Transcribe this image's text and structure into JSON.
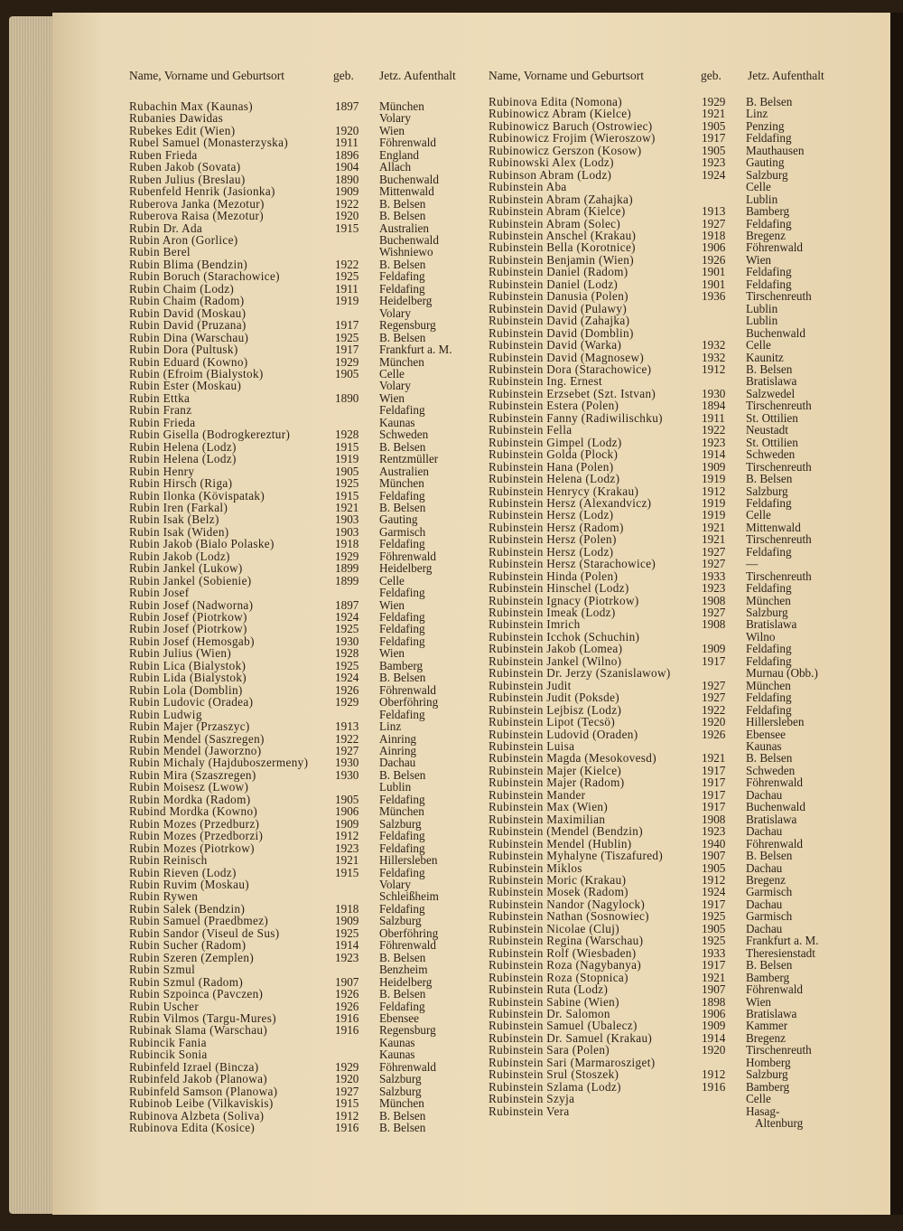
{
  "headers": {
    "name": "Name, Vorname und Geburtsort",
    "born": "geb.",
    "residence": "Jetz. Aufenthalt"
  },
  "left": [
    [
      "Rubachin Max (Kaunas)",
      "1897",
      "München"
    ],
    [
      "Rubanies Dawidas",
      "",
      "Volary"
    ],
    [
      "Rubekes Edit (Wien)",
      "1920",
      "Wien"
    ],
    [
      "Rubel Samuel (Monasterzyska)",
      "1911",
      "Föhrenwald"
    ],
    [
      "Ruben Frieda",
      "1896",
      "England"
    ],
    [
      "Ruben Jakob (Sovata)",
      "1904",
      "Allach"
    ],
    [
      "Ruben Julius (Breslau)",
      "1890",
      "Buchenwald"
    ],
    [
      "Rubenfeld Henrik (Jasionka)",
      "1909",
      "Mittenwald"
    ],
    [
      "Ruberova Janka (Mezotur)",
      "1922",
      "B. Belsen"
    ],
    [
      "Ruberova Raisa (Mezotur)",
      "1920",
      "B. Belsen"
    ],
    [
      "Rubin Dr. Ada",
      "1915",
      "Australien"
    ],
    [
      "Rubin Aron (Gorlice)",
      "",
      "Buchenwald"
    ],
    [
      "Rubin Berel",
      "",
      "Wishniewo"
    ],
    [
      "Rubin Blima (Bendzin)",
      "1922",
      "B. Belsen"
    ],
    [
      "Rubin Boruch (Starachowice)",
      "1925",
      "Feldafing"
    ],
    [
      "Rubin Chaim (Lodz)",
      "1911",
      "Feldafing"
    ],
    [
      "Rubin Chaim (Radom)",
      "1919",
      "Heidelberg"
    ],
    [
      "Rubin David (Moskau)",
      "",
      "Volary"
    ],
    [
      "Rubin David (Pruzana)",
      "1917",
      "Regensburg"
    ],
    [
      "Rubin Dina (Warschau)",
      "1925",
      "B. Belsen"
    ],
    [
      "Rubin Dora (Pultusk)",
      "1917",
      "Frankfurt a. M."
    ],
    [
      "Rubin Eduard (Kowno)",
      "1929",
      "München"
    ],
    [
      "Rubin (Efroim (Bialystok)",
      "1905",
      "Celle"
    ],
    [
      "Rubin Ester (Moskau)",
      "",
      "Volary"
    ],
    [
      "Rubin Ettka",
      "1890",
      "Wien"
    ],
    [
      "Rubin Franz",
      "",
      "Feldafing"
    ],
    [
      "Rubin Frieda",
      "",
      "Kaunas"
    ],
    [
      "Rubin Gisella (Bodrogkereztur)",
      "1928",
      "Schweden"
    ],
    [
      "Rubin Helena (Lodz)",
      "1915",
      "B. Belsen"
    ],
    [
      "Rubin Helena (Lodz)",
      "1919",
      "Rentzmüller"
    ],
    [
      "Rubin Henry",
      "1905",
      "Australien"
    ],
    [
      "Rubin Hirsch (Riga)",
      "1925",
      "München"
    ],
    [
      "Rubin Ilonka (Kövispatak)",
      "1915",
      "Feldafing"
    ],
    [
      "Rubin Iren (Farkal)",
      "1921",
      "B. Belsen"
    ],
    [
      "Rubin Isak (Belz)",
      "1903",
      "Gauting"
    ],
    [
      "Rubin Isak (Widen)",
      "1903",
      "Garmisch"
    ],
    [
      "Rubin Jakob (Bialo Polaske)",
      "1918",
      "Feldafing"
    ],
    [
      "Rubin Jakob (Lodz)",
      "1929",
      "Föhrenwald"
    ],
    [
      "Rubin Jankel (Lukow)",
      "1899",
      "Heidelberg"
    ],
    [
      "Rubin Jankel (Sobienie)",
      "1899",
      "Celle"
    ],
    [
      "Rubin Josef",
      "",
      "Feldafing"
    ],
    [
      "Rubin Josef (Nadworna)",
      "1897",
      "Wien"
    ],
    [
      "Rubin Josef (Piotrkow)",
      "1924",
      "Feldafing"
    ],
    [
      "Rubin Josef (Piotrkow)",
      "1925",
      "Feldafing"
    ],
    [
      "Rubin Josef (Hemosgab)",
      "1930",
      "Feldafing"
    ],
    [
      "Rubin Julius (Wien)",
      "1928",
      "Wien"
    ],
    [
      "Rubin Lica (Bialystok)",
      "1925",
      "Bamberg"
    ],
    [
      "Rubin Lida (Bialystok)",
      "1924",
      "B. Belsen"
    ],
    [
      "Rubin Lola (Domblin)",
      "1926",
      "Föhrenwald"
    ],
    [
      "Rubin Ludovic (Oradea)",
      "1929",
      "Oberföhring"
    ],
    [
      "Rubin Ludwig",
      "",
      "Feldafing"
    ],
    [
      "Rubin Majer (Przaszyc)",
      "1913",
      "Linz"
    ],
    [
      "Rubin Mendel (Saszregen)",
      "1922",
      "Ainring"
    ],
    [
      "Rubin Mendel (Jaworzno)",
      "1927",
      "Ainring"
    ],
    [
      "Rubin Michaly (Hajduboszermeny)",
      "1930",
      "Dachau"
    ],
    [
      "Rubin Mira (Szaszregen)",
      "1930",
      "B. Belsen"
    ],
    [
      "Rubin Moisesz (Lwow)",
      "",
      "Lublin"
    ],
    [
      "Rubin Mordka (Radom)",
      "1905",
      "Feldafing"
    ],
    [
      "Rubind Mordka (Kowno)",
      "1906",
      "München"
    ],
    [
      "Rubin Mozes (Przedburz)",
      "1909",
      "Salzburg"
    ],
    [
      "Rubin Mozes (Przedborzi)",
      "1912",
      "Feldafing"
    ],
    [
      "Rubin Mozes (Piotrkow)",
      "1923",
      "Feldafing"
    ],
    [
      "Rubin Reinisch",
      "1921",
      "Hillersleben"
    ],
    [
      "Rubin Rieven (Lodz)",
      "1915",
      "Feldafing"
    ],
    [
      "Rubin Ruvim (Moskau)",
      "",
      "Volary"
    ],
    [
      "Rubin Rywen",
      "",
      "Schleißheim"
    ],
    [
      "Rubin Salek (Bendzin)",
      "1918",
      "Feldafing"
    ],
    [
      "Rubin Samuel (Praedbmez)",
      "1909",
      "Salzburg"
    ],
    [
      "Rubin Sandor (Viseul de Sus)",
      "1925",
      "Oberföhring"
    ],
    [
      "Rubin Sucher (Radom)",
      "1914",
      "Föhrenwald"
    ],
    [
      "Rubin Szeren (Zemplen)",
      "1923",
      "B. Belsen"
    ],
    [
      "Rubin Szmul",
      "",
      "Benzheim"
    ],
    [
      "Rubin Szmul (Radom)",
      "1907",
      "Heidelberg"
    ],
    [
      "Rubin Szpoinca (Pavczen)",
      "1926",
      "B. Belsen"
    ],
    [
      "Rubin Uscher",
      "1926",
      "Feldafing"
    ],
    [
      "Rubin Vilmos (Targu-Mures)",
      "1916",
      "Ebensee"
    ],
    [
      "Rubinak Slama (Warschau)",
      "1916",
      "Regensburg"
    ],
    [
      "Rubincik Fania",
      "",
      "Kaunas"
    ],
    [
      "Rubincik Sonia",
      "",
      "Kaunas"
    ],
    [
      "Rubinfeld Izrael (Bincza)",
      "1929",
      "Föhrenwald"
    ],
    [
      "Rubinfeld Jakob (Planowa)",
      "1920",
      "Salzburg"
    ],
    [
      "Rubinfeld Samson (Planowa)",
      "1927",
      "Salzburg"
    ],
    [
      "Rubinob Leibe (Vilkaviskis)",
      "1915",
      "München"
    ],
    [
      "Rubinova Alzbeta (Soliva)",
      "1912",
      "B. Belsen"
    ],
    [
      "Rubinova Edita (Kosice)",
      "1916",
      "B. Belsen"
    ]
  ],
  "right": [
    [
      "Rubinova Edita (Nomona)",
      "1929",
      "B. Belsen"
    ],
    [
      "Rubinowicz Abram (Kielce)",
      "1921",
      "Linz"
    ],
    [
      "Rubinowicz Baruch (Ostrowiec)",
      "1905",
      "Penzing"
    ],
    [
      "Rubinowicz Frojim (Wieroszow)",
      "1917",
      "Feldafing"
    ],
    [
      "Rubinowicz Gerszon (Kosow)",
      "1905",
      "Mauthausen"
    ],
    [
      "Rubinowski Alex (Lodz)",
      "1923",
      "Gauting"
    ],
    [
      "Rubinson Abram (Lodz)",
      "1924",
      "Salzburg"
    ],
    [
      "Rubinstein Aba",
      "",
      "Celle"
    ],
    [
      "Rubinstein Abram (Zahajka)",
      "",
      "Lublin"
    ],
    [
      "Rubinstein Abram (Kielce)",
      "1913",
      "Bamberg"
    ],
    [
      "Rubinstein Abram (Solec)",
      "1927",
      "Feldafing"
    ],
    [
      "Rubinstein Anschel (Krakau)",
      "1918",
      "Bregenz"
    ],
    [
      "Rubinstein Bella (Korotnice)",
      "1906",
      "Föhrenwald"
    ],
    [
      "Rubinstein Benjamin (Wien)",
      "1926",
      "Wien"
    ],
    [
      "Rubinstein Daniel (Radom)",
      "1901",
      "Feldafing"
    ],
    [
      "Rubinstein Daniel (Lodz)",
      "1901",
      "Feldafing"
    ],
    [
      "Rubinstein Danusia (Polen)",
      "1936",
      "Tirschenreuth"
    ],
    [
      "Rubinstein David (Pulawy)",
      "",
      "Lublin"
    ],
    [
      "Rubinstein David (Zahajka)",
      "",
      "Lublin"
    ],
    [
      "Rubinstein David (Domblin)",
      "",
      "Buchenwald"
    ],
    [
      "Rubinstein David (Warka)",
      "1932",
      "Celle"
    ],
    [
      "Rubinstein David (Magnosew)",
      "1932",
      "Kaunitz"
    ],
    [
      "Rubinstein Dora (Starachowice)",
      "1912",
      "B. Belsen"
    ],
    [
      "Rubinstein Ing. Ernest",
      "",
      "Bratislawa"
    ],
    [
      "Rubinstein Erzsebet (Szt. Istvan)",
      "1930",
      "Salzwedel"
    ],
    [
      "Rubinstein Estera (Polen)",
      "1894",
      "Tirschenreuth"
    ],
    [
      "Rubinstein Fanny (Radiwilischku)",
      "1911",
      "St. Ottilien"
    ],
    [
      "Rubinstein Fella",
      "1922",
      "Neustadt"
    ],
    [
      "Rubinstein Gimpel (Lodz)",
      "1923",
      "St. Ottilien"
    ],
    [
      "Rubinstein Golda (Plock)",
      "1914",
      "Schweden"
    ],
    [
      "Rubinstein Hana (Polen)",
      "1909",
      "Tirschenreuth"
    ],
    [
      "Rubinstein Helena (Lodz)",
      "1919",
      "B. Belsen"
    ],
    [
      "Rubinstein Henrycy (Krakau)",
      "1912",
      "Salzburg"
    ],
    [
      "Rubinstein Hersz (Alexandvicz)",
      "1919",
      "Feldafing"
    ],
    [
      "Rubinstein Hersz (Lodz)",
      "1919",
      "Celle"
    ],
    [
      "Rubinstein Hersz (Radom)",
      "1921",
      "Mittenwald"
    ],
    [
      "Rubinstein Hersz (Polen)",
      "1921",
      "Tirschenreuth"
    ],
    [
      "Rubinstein Hersz (Lodz)",
      "1927",
      "Feldafing"
    ],
    [
      "Rubinstein Hersz (Starachowice)",
      "1927",
      "—"
    ],
    [
      "Rubinstein Hinda (Polen)",
      "1933",
      "Tirschenreuth"
    ],
    [
      "Rubinstein Hinschel (Lodz)",
      "1923",
      "Feldafing"
    ],
    [
      "Rubinstein Ignacy (Piotrkow)",
      "1908",
      "München"
    ],
    [
      "Rubinstein Imeak (Lodz)",
      "1927",
      "Salzburg"
    ],
    [
      "Rubinstein Imrich",
      "1908",
      "Bratislawa"
    ],
    [
      "Rubinstein Icchok (Schuchin)",
      "",
      "Wilno"
    ],
    [
      "Rubinstein Jakob (Lomea)",
      "1909",
      "Feldafing"
    ],
    [
      "Rubinstein Jankel (Wilno)",
      "1917",
      "Feldafing"
    ],
    [
      "Rubinstein Dr. Jerzy (Szanislawow)",
      "",
      "Murnau (Obb.)"
    ],
    [
      "Rubinstein Judit",
      "1927",
      "München"
    ],
    [
      "Rubinstein Judit (Poksde)",
      "1927",
      "Feldafing"
    ],
    [
      "Rubinstein Lejbisz (Lodz)",
      "1922",
      "Feldafing"
    ],
    [
      "Rubinstein Lipot (Tecsö)",
      "1920",
      "Hillersleben"
    ],
    [
      "Rubinstein Ludovid (Oraden)",
      "1926",
      "Ebensee"
    ],
    [
      "Rubinstein Luisa",
      "",
      "Kaunas"
    ],
    [
      "Rubinstein Magda (Mesokovesd)",
      "1921",
      "B. Belsen"
    ],
    [
      "Rubinstein Majer (Kielce)",
      "1917",
      "Schweden"
    ],
    [
      "Rubinstein Majer (Radom)",
      "1917",
      "Föhrenwald"
    ],
    [
      "Rubinstein Mander",
      "1917",
      "Dachau"
    ],
    [
      "Rubinstein Max (Wien)",
      "1917",
      "Buchenwald"
    ],
    [
      "Rubinstein Maximilian",
      "1908",
      "Bratislawa"
    ],
    [
      "Rubinstein (Mendel (Bendzin)",
      "1923",
      "Dachau"
    ],
    [
      "Rubinstein Mendel (Hublin)",
      "1940",
      "Föhrenwald"
    ],
    [
      "Rubinstein Myhalyne (Tiszafured)",
      "1907",
      "B. Belsen"
    ],
    [
      "Rubinstein Miklos",
      "1905",
      "Dachau"
    ],
    [
      "Rubinstein Moric (Krakau)",
      "1912",
      "Bregenz"
    ],
    [
      "Rubinstein Mosek (Radom)",
      "1924",
      "Garmisch"
    ],
    [
      "Rubinstein Nandor (Nagylock)",
      "1917",
      "Dachau"
    ],
    [
      "Rubinstein Nathan (Sosnowiec)",
      "1925",
      "Garmisch"
    ],
    [
      "Rubinstein Nicolae (Cluj)",
      "1905",
      "Dachau"
    ],
    [
      "Rubinstein Regina (Warschau)",
      "1925",
      "Frankfurt a. M."
    ],
    [
      "Rubinstein Rolf (Wiesbaden)",
      "1933",
      "Theresienstadt"
    ],
    [
      "Rubinstein Roza (Nagybanya)",
      "1917",
      "B. Belsen"
    ],
    [
      "Rubinstein Roza (Stopnica)",
      "1921",
      "Bamberg"
    ],
    [
      "Rubinstein Ruta (Lodz)",
      "1907",
      "Föhrenwald"
    ],
    [
      "Rubinstein Sabine (Wien)",
      "1898",
      "Wien"
    ],
    [
      "Rubinstein Dr. Salomon",
      "1906",
      "Bratislawa"
    ],
    [
      "Rubinstein Samuel (Ubalecz)",
      "1909",
      "Kammer"
    ],
    [
      "Rubinstein Dr. Samuel (Krakau)",
      "1914",
      "Bregenz"
    ],
    [
      "Rubinstein Sara (Polen)",
      "1920",
      "Tirschenreuth"
    ],
    [
      "Rubinstein Sari (Marmarosziget)",
      "",
      "Homberg"
    ],
    [
      "Rubinstein Srul (Stoszek)",
      "1912",
      "Salzburg"
    ],
    [
      "Rubinstein Szlama (Lodz)",
      "1916",
      "Bamberg"
    ],
    [
      "Rubinstein Szyja",
      "",
      "Celle"
    ],
    [
      "Rubinstein Vera",
      "",
      "Hasag-"
    ],
    [
      "",
      "",
      "Altenburg"
    ]
  ]
}
